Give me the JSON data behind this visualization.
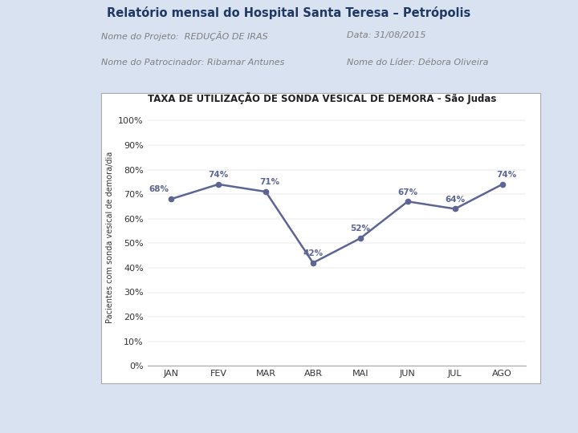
{
  "title_main": "Relatório mensal do Hospital Santa Teresa – Petrópolis",
  "label_projeto": "Nome do Projeto:  REDUÇÃO DE IRAS",
  "label_data": "Data: 31/08/2015",
  "label_patrocinador": "Nome do Patrocinador: Ribamar Antunes",
  "label_lider": "Nome do Líder: Débora Oliveira",
  "chart_title": "TAXA DE UTILIZAÇÃO DE SONDA VESICAL DE DEMORA - São Judas",
  "ylabel": "Pacientes com sonda vesical de demora/dia",
  "months": [
    "JAN",
    "FEV",
    "MAR",
    "ABR",
    "MAI",
    "JUN",
    "JUL",
    "AGO"
  ],
  "values": [
    0.68,
    0.74,
    0.71,
    0.42,
    0.52,
    0.67,
    0.64,
    0.74
  ],
  "labels": [
    "68%",
    "74%",
    "71%",
    "42%",
    "52%",
    "67%",
    "64%",
    "74%"
  ],
  "line_color": "#5d6593",
  "marker_color": "#5d6593",
  "chart_bg": "#ffffff",
  "outer_bg": "#d9e2f0",
  "header_bg": "#ffffff",
  "title_color": "#1f3864",
  "meta_color": "#7f7f7f",
  "chart_border_color": "#aaaaaa",
  "yticks": [
    0.0,
    0.1,
    0.2,
    0.3,
    0.4,
    0.5,
    0.6,
    0.7,
    0.8,
    0.9,
    1.0
  ],
  "ytick_labels": [
    "0%",
    "10%",
    "20%",
    "30%",
    "40%",
    "50%",
    "60%",
    "70%",
    "80%",
    "90%",
    "100%"
  ],
  "label_offsets_x": [
    -0.25,
    0.0,
    0.08,
    0.0,
    0.0,
    0.0,
    0.0,
    0.08
  ],
  "label_offsets_y": [
    0.022,
    0.022,
    0.022,
    0.022,
    0.022,
    0.022,
    0.022,
    0.022
  ]
}
